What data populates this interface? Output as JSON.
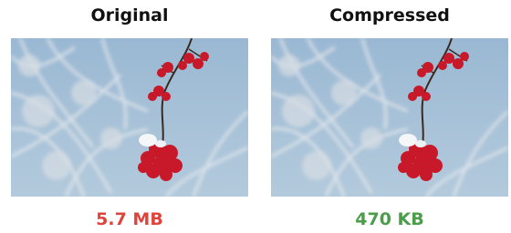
{
  "panels": [
    {
      "title": "Original",
      "size": "5.7 MB"
    },
    {
      "title": "Compressed",
      "size": "470 KB"
    }
  ]
}
